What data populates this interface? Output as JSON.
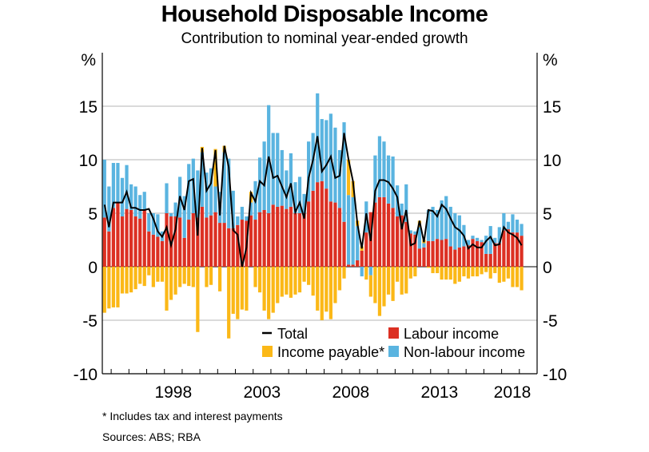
{
  "chart_data": {
    "type": "bar",
    "stacked": true,
    "title": "Household Disposable Income",
    "subtitle": "Contribution to nominal year-ended growth",
    "ylabel_left": "%",
    "ylabel_right": "%",
    "ylim": [
      -10,
      20
    ],
    "yticks": [
      -10,
      -5,
      0,
      5,
      10,
      15
    ],
    "xtick_labels": [
      "1998",
      "2003",
      "2008",
      "2013",
      "2018"
    ],
    "grid": true,
    "legend_placement": "bottom-right inside",
    "x": [
      "1994Q3",
      "1994Q4",
      "1995Q1",
      "1995Q2",
      "1995Q3",
      "1995Q4",
      "1996Q1",
      "1996Q2",
      "1996Q3",
      "1996Q4",
      "1997Q1",
      "1997Q2",
      "1997Q3",
      "1997Q4",
      "1998Q1",
      "1998Q2",
      "1998Q3",
      "1998Q4",
      "1999Q1",
      "1999Q2",
      "1999Q3",
      "1999Q4",
      "2000Q1",
      "2000Q2",
      "2000Q3",
      "2000Q4",
      "2001Q1",
      "2001Q2",
      "2001Q3",
      "2001Q4",
      "2002Q1",
      "2002Q2",
      "2002Q3",
      "2002Q4",
      "2003Q1",
      "2003Q2",
      "2003Q3",
      "2003Q4",
      "2004Q1",
      "2004Q2",
      "2004Q3",
      "2004Q4",
      "2005Q1",
      "2005Q2",
      "2005Q3",
      "2005Q4",
      "2006Q1",
      "2006Q2",
      "2006Q3",
      "2006Q4",
      "2007Q1",
      "2007Q2",
      "2007Q3",
      "2007Q4",
      "2008Q1",
      "2008Q2",
      "2008Q3",
      "2008Q4",
      "2009Q1",
      "2009Q2",
      "2009Q3",
      "2009Q4",
      "2010Q1",
      "2010Q2",
      "2010Q3",
      "2010Q4",
      "2011Q1",
      "2011Q2",
      "2011Q3",
      "2011Q4",
      "2012Q1",
      "2012Q2",
      "2012Q3",
      "2012Q4",
      "2013Q1",
      "2013Q2",
      "2013Q3",
      "2013Q4",
      "2014Q1",
      "2014Q2",
      "2014Q3",
      "2014Q4",
      "2015Q1",
      "2015Q2",
      "2015Q3",
      "2015Q4",
      "2016Q1",
      "2016Q2",
      "2016Q3",
      "2016Q4",
      "2017Q1",
      "2017Q2",
      "2017Q3",
      "2017Q4",
      "2018Q1"
    ],
    "series": [
      {
        "name": "Labour income",
        "kind": "bar",
        "color": "#dc3023",
        "values": [
          4.6,
          3.3,
          5.5,
          6.0,
          4.7,
          5.4,
          5.3,
          4.7,
          4.5,
          5.3,
          3.3,
          3.0,
          2.8,
          2.4,
          5.0,
          4.7,
          4.7,
          4.6,
          2.7,
          4.4,
          5.0,
          4.6,
          5.6,
          4.6,
          4.8,
          5.1,
          4.1,
          4.1,
          3.6,
          3.6,
          3.9,
          4.4,
          4.3,
          4.8,
          4.4,
          5.1,
          5.3,
          5.0,
          5.8,
          5.6,
          5.7,
          5.4,
          5.6,
          5.0,
          5.0,
          5.0,
          6.1,
          7.1,
          7.9,
          8.0,
          7.3,
          6.1,
          6.0,
          5.5,
          4.2,
          0.2,
          0.2,
          0.6,
          1.5,
          3.2,
          5.1,
          6.0,
          6.5,
          6.5,
          5.9,
          5.5,
          4.7,
          4.8,
          4.2,
          3.1,
          3.0,
          1.7,
          1.8,
          2.4,
          2.4,
          2.6,
          2.5,
          2.6,
          1.9,
          1.6,
          1.8,
          1.9,
          2.0,
          2.6,
          2.4,
          2.3,
          1.2,
          1.2,
          2.2,
          2.2,
          3.4,
          3.5,
          3.2,
          3.2,
          2.9
        ]
      },
      {
        "name": "Non-labour income",
        "kind": "bar",
        "color": "#5ab4e0",
        "values": [
          5.4,
          4.2,
          4.2,
          3.7,
          3.6,
          4.1,
          2.4,
          2.8,
          2.2,
          1.7,
          1.7,
          2.0,
          2.1,
          0.9,
          2.8,
          0.3,
          1.3,
          3.8,
          3.9,
          5.2,
          5.1,
          4.4,
          5.1,
          4.2,
          4.4,
          2.4,
          2.9,
          6.6,
          6.5,
          3.5,
          0.8,
          1.2,
          0.4,
          1.2,
          3.6,
          5.1,
          6.4,
          10.1,
          6.7,
          6.9,
          5.2,
          3.6,
          5.0,
          2.9,
          3.4,
          1.8,
          5.6,
          5.4,
          8.3,
          5.8,
          6.4,
          8.2,
          7.0,
          5.4,
          9.3,
          6.5,
          6.3,
          3.2,
          -0.9,
          2.9,
          -0.8,
          4.4,
          5.7,
          5.2,
          4.5,
          4.8,
          2.9,
          1.1,
          3.5,
          0.3,
          0.3,
          2.0,
          0.4,
          2.9,
          3.2,
          2.7,
          3.7,
          4.0,
          3.7,
          3.4,
          3.0,
          2.0,
          0.5,
          0.3,
          0.3,
          0.2,
          1.7,
          2.6,
          0.5,
          1.5,
          1.6,
          0.7,
          1.7,
          1.2,
          1.1
        ]
      },
      {
        "name": "Income payable*",
        "kind": "bar",
        "color": "#fbb817",
        "values": [
          -4.3,
          -3.9,
          -3.8,
          -3.8,
          -2.5,
          -2.5,
          -2.4,
          -2.1,
          -1.6,
          -1.8,
          -0.8,
          -1.9,
          -1.4,
          -1.4,
          -4.1,
          -3.1,
          -2.6,
          -1.9,
          -1.6,
          -1.8,
          -1.9,
          -6.1,
          0.5,
          -1.9,
          -1.7,
          3.5,
          -2.3,
          0.6,
          -6.7,
          -4.4,
          -4.9,
          -4.0,
          -4.1,
          1.0,
          -1.9,
          -2.4,
          -4.1,
          -4.9,
          -4.3,
          -3.4,
          -2.8,
          -2.6,
          -2.9,
          -2.6,
          -2.4,
          -1.4,
          -1.7,
          -2.7,
          -4.1,
          -5.0,
          -4.2,
          -4.9,
          -3.4,
          -2.2,
          -1.1,
          3.3,
          1.5,
          0.5,
          0.4,
          -1.2,
          -2.0,
          -3.4,
          -4.6,
          -3.7,
          -2.6,
          -3.2,
          -1.4,
          -2.6,
          -2.5,
          -1.1,
          -0.9,
          0.6,
          0.3,
          -0.1,
          -0.6,
          -0.6,
          -1.2,
          -1.2,
          -1.2,
          -1.6,
          -1.4,
          -0.9,
          -1.1,
          -0.9,
          -0.9,
          -0.7,
          -0.5,
          -1.1,
          -0.6,
          -1.5,
          -1.4,
          -1.1,
          -1.9,
          -1.9,
          -2.2
        ]
      },
      {
        "name": "Total",
        "kind": "line",
        "color": "#000000",
        "values": [
          5.8,
          3.7,
          6.0,
          6.0,
          6.0,
          7.0,
          5.5,
          5.5,
          5.3,
          5.3,
          5.4,
          4.5,
          3.3,
          2.8,
          3.7,
          2.0,
          3.5,
          6.6,
          5.3,
          8.0,
          8.2,
          2.9,
          11.1,
          7.1,
          7.8,
          10.9,
          4.8,
          11.3,
          9.3,
          3.4,
          3.0,
          0.0,
          1.8,
          6.9,
          6.1,
          8.0,
          7.6,
          10.3,
          8.3,
          8.5,
          7.5,
          6.5,
          7.8,
          5.1,
          6.0,
          4.5,
          8.3,
          10.0,
          12.2,
          8.9,
          9.5,
          10.3,
          8.3,
          8.5,
          12.5,
          10.0,
          8.0,
          4.0,
          1.7,
          5.0,
          2.4,
          7.1,
          8.1,
          8.1,
          7.9,
          7.3,
          6.5,
          3.5,
          5.3,
          2.0,
          2.2,
          4.3,
          2.3,
          5.3,
          5.2,
          4.7,
          5.8,
          5.4,
          4.5,
          3.7,
          3.4,
          2.9,
          1.7,
          2.1,
          1.8,
          1.8,
          2.4,
          2.8,
          2.0,
          2.1,
          3.7,
          3.2,
          3.0,
          2.7,
          2.0
        ]
      }
    ],
    "footnote": "*       Includes tax and interest payments",
    "source": "Sources: ABS; RBA"
  }
}
